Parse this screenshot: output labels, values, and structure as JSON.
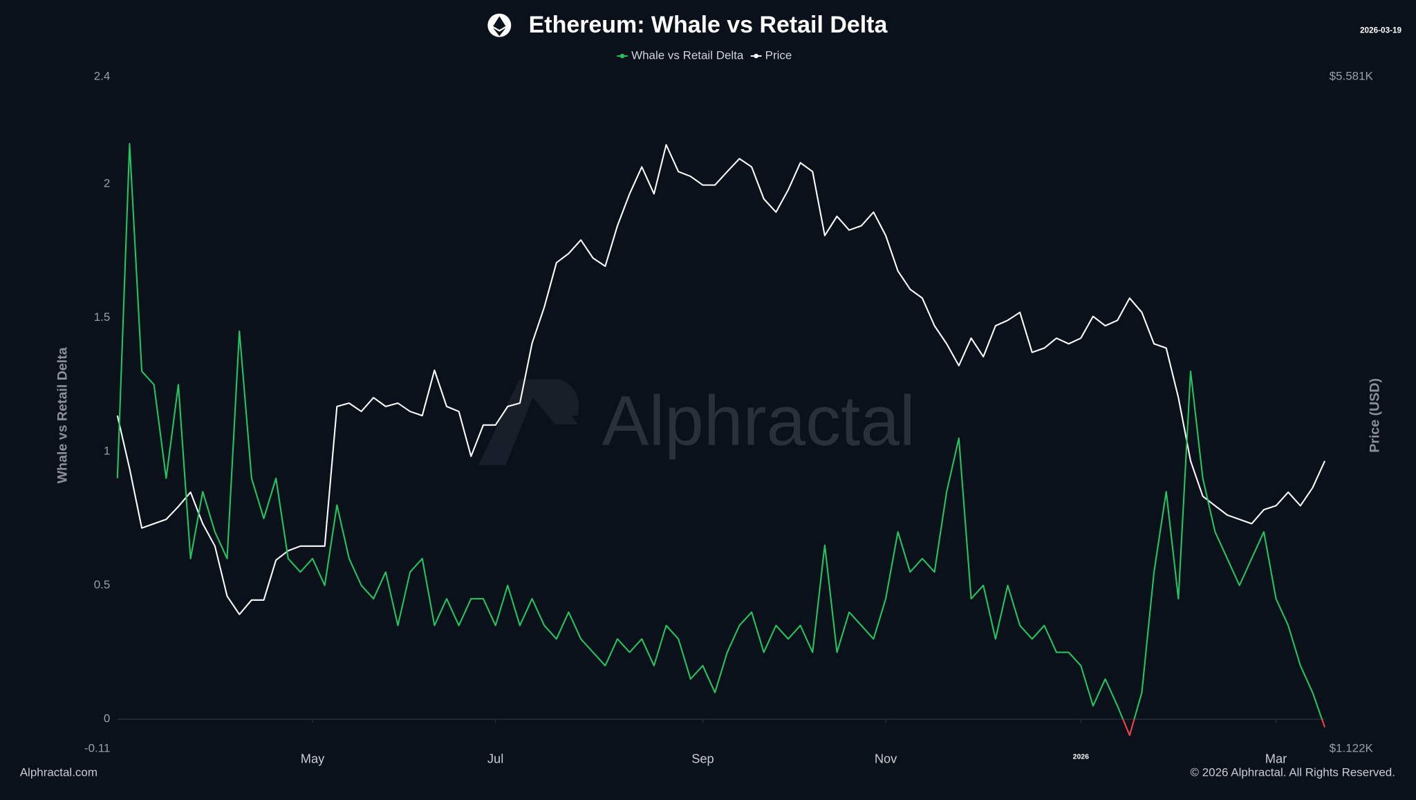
{
  "chart_data": {
    "type": "line",
    "title": "Ethereum: Whale vs Retail Delta",
    "date": "2026-03-19",
    "ylabel": "Whale vs Retail Delta",
    "y2label": "Price (USD)",
    "watermark": "Alphractal",
    "source": "Alphractal.com",
    "copyright": "© 2026 Alphractal. All Rights Reserved.",
    "categories": [
      null,
      null,
      null,
      null,
      null,
      null,
      null,
      null,
      null,
      null,
      null,
      null,
      null,
      null,
      null,
      null,
      "May",
      null,
      null,
      null,
      null,
      null,
      null,
      null,
      null,
      null,
      null,
      null,
      null,
      null,
      null,
      "Jul",
      null,
      null,
      null,
      null,
      null,
      null,
      null,
      null,
      null,
      null,
      null,
      null,
      null,
      null,
      null,
      null,
      "Sep",
      null,
      null,
      null,
      null,
      null,
      null,
      null,
      null,
      null,
      null,
      null,
      null,
      null,
      null,
      "Nov",
      null,
      null,
      null,
      null,
      null,
      null,
      null,
      null,
      null,
      null,
      null,
      null,
      null,
      null,
      null,
      "2026",
      null,
      null,
      null,
      null,
      null,
      null,
      null,
      null,
      null,
      null,
      null,
      null,
      null,
      null,
      null,
      "Mar",
      null,
      null,
      null,
      null
    ],
    "series": [
      {
        "name": "Price",
        "color": "#ffffff",
        "axis": "y2",
        "values": [
          2485,
          2190,
          1900,
          1920,
          1940,
          2000,
          2070,
          1920,
          1820,
          1615,
          1546,
          1600,
          1600,
          1760,
          1800,
          1820,
          1820,
          1820,
          2540,
          2560,
          2510,
          2594,
          2540,
          2560,
          2510,
          2485,
          2770,
          2540,
          2510,
          2255,
          2430,
          2430,
          2540,
          2560,
          2954,
          3220,
          3580,
          3660,
          3780,
          3620,
          3550,
          3910,
          4220,
          4500,
          4220,
          4745,
          4450,
          4400,
          4310,
          4310,
          4450,
          4590,
          4500,
          4170,
          4040,
          4260,
          4545,
          4450,
          3820,
          4000,
          3870,
          3910,
          4040,
          3820,
          3510,
          3360,
          3290,
          3080,
          2950,
          2800,
          2990,
          2860,
          3080,
          3120,
          3180,
          2890,
          2920,
          2990,
          2950,
          2990,
          3150,
          3080,
          3120,
          3290,
          3180,
          2950,
          2920,
          2594,
          2230,
          2050,
          2004,
          1960,
          1940,
          1920,
          1985,
          2004,
          2070,
          2004,
          2092,
          2230
        ]
      },
      {
        "name": "Whale vs Retail Delta",
        "color": "#22c55e",
        "negative_color": "#ef4444",
        "values": [
          0.9,
          2.15,
          1.3,
          1.25,
          0.9,
          1.25,
          0.6,
          0.85,
          0.7,
          0.6,
          1.45,
          0.9,
          0.75,
          0.9,
          0.6,
          0.55,
          0.6,
          0.5,
          0.8,
          0.6,
          0.5,
          0.45,
          0.55,
          0.35,
          0.55,
          0.6,
          0.35,
          0.45,
          0.35,
          0.45,
          0.45,
          0.35,
          0.5,
          0.35,
          0.45,
          0.35,
          0.3,
          0.4,
          0.3,
          0.25,
          0.2,
          0.3,
          0.25,
          0.3,
          0.2,
          0.35,
          0.3,
          0.15,
          0.2,
          0.1,
          0.25,
          0.35,
          0.4,
          0.25,
          0.35,
          0.3,
          0.35,
          0.25,
          0.65,
          0.25,
          0.4,
          0.35,
          0.3,
          0.45,
          0.7,
          0.55,
          0.6,
          0.55,
          0.85,
          1.05,
          0.45,
          0.5,
          0.3,
          0.5,
          0.35,
          0.3,
          0.35,
          0.25,
          0.25,
          0.2,
          0.05,
          0.15,
          0.05,
          -0.06,
          0.1,
          0.55,
          0.85,
          0.45,
          1.3,
          0.9,
          0.7,
          0.6,
          0.5,
          0.6,
          0.7,
          0.45,
          0.35,
          0.2,
          0.1,
          -0.03
        ]
      }
    ],
    "ylim": [
      -0.11,
      2.4
    ],
    "yticks": [
      -0.11,
      0,
      0.5,
      1,
      1.5,
      2,
      2.4
    ],
    "y2lim": [
      1122,
      5581
    ],
    "y2log": true,
    "y2ticks": [
      {
        "value": 1122,
        "label": "$1.122K"
      },
      {
        "value": 5581,
        "label": "$5.581K"
      }
    ],
    "grid": false,
    "legend": "top"
  }
}
